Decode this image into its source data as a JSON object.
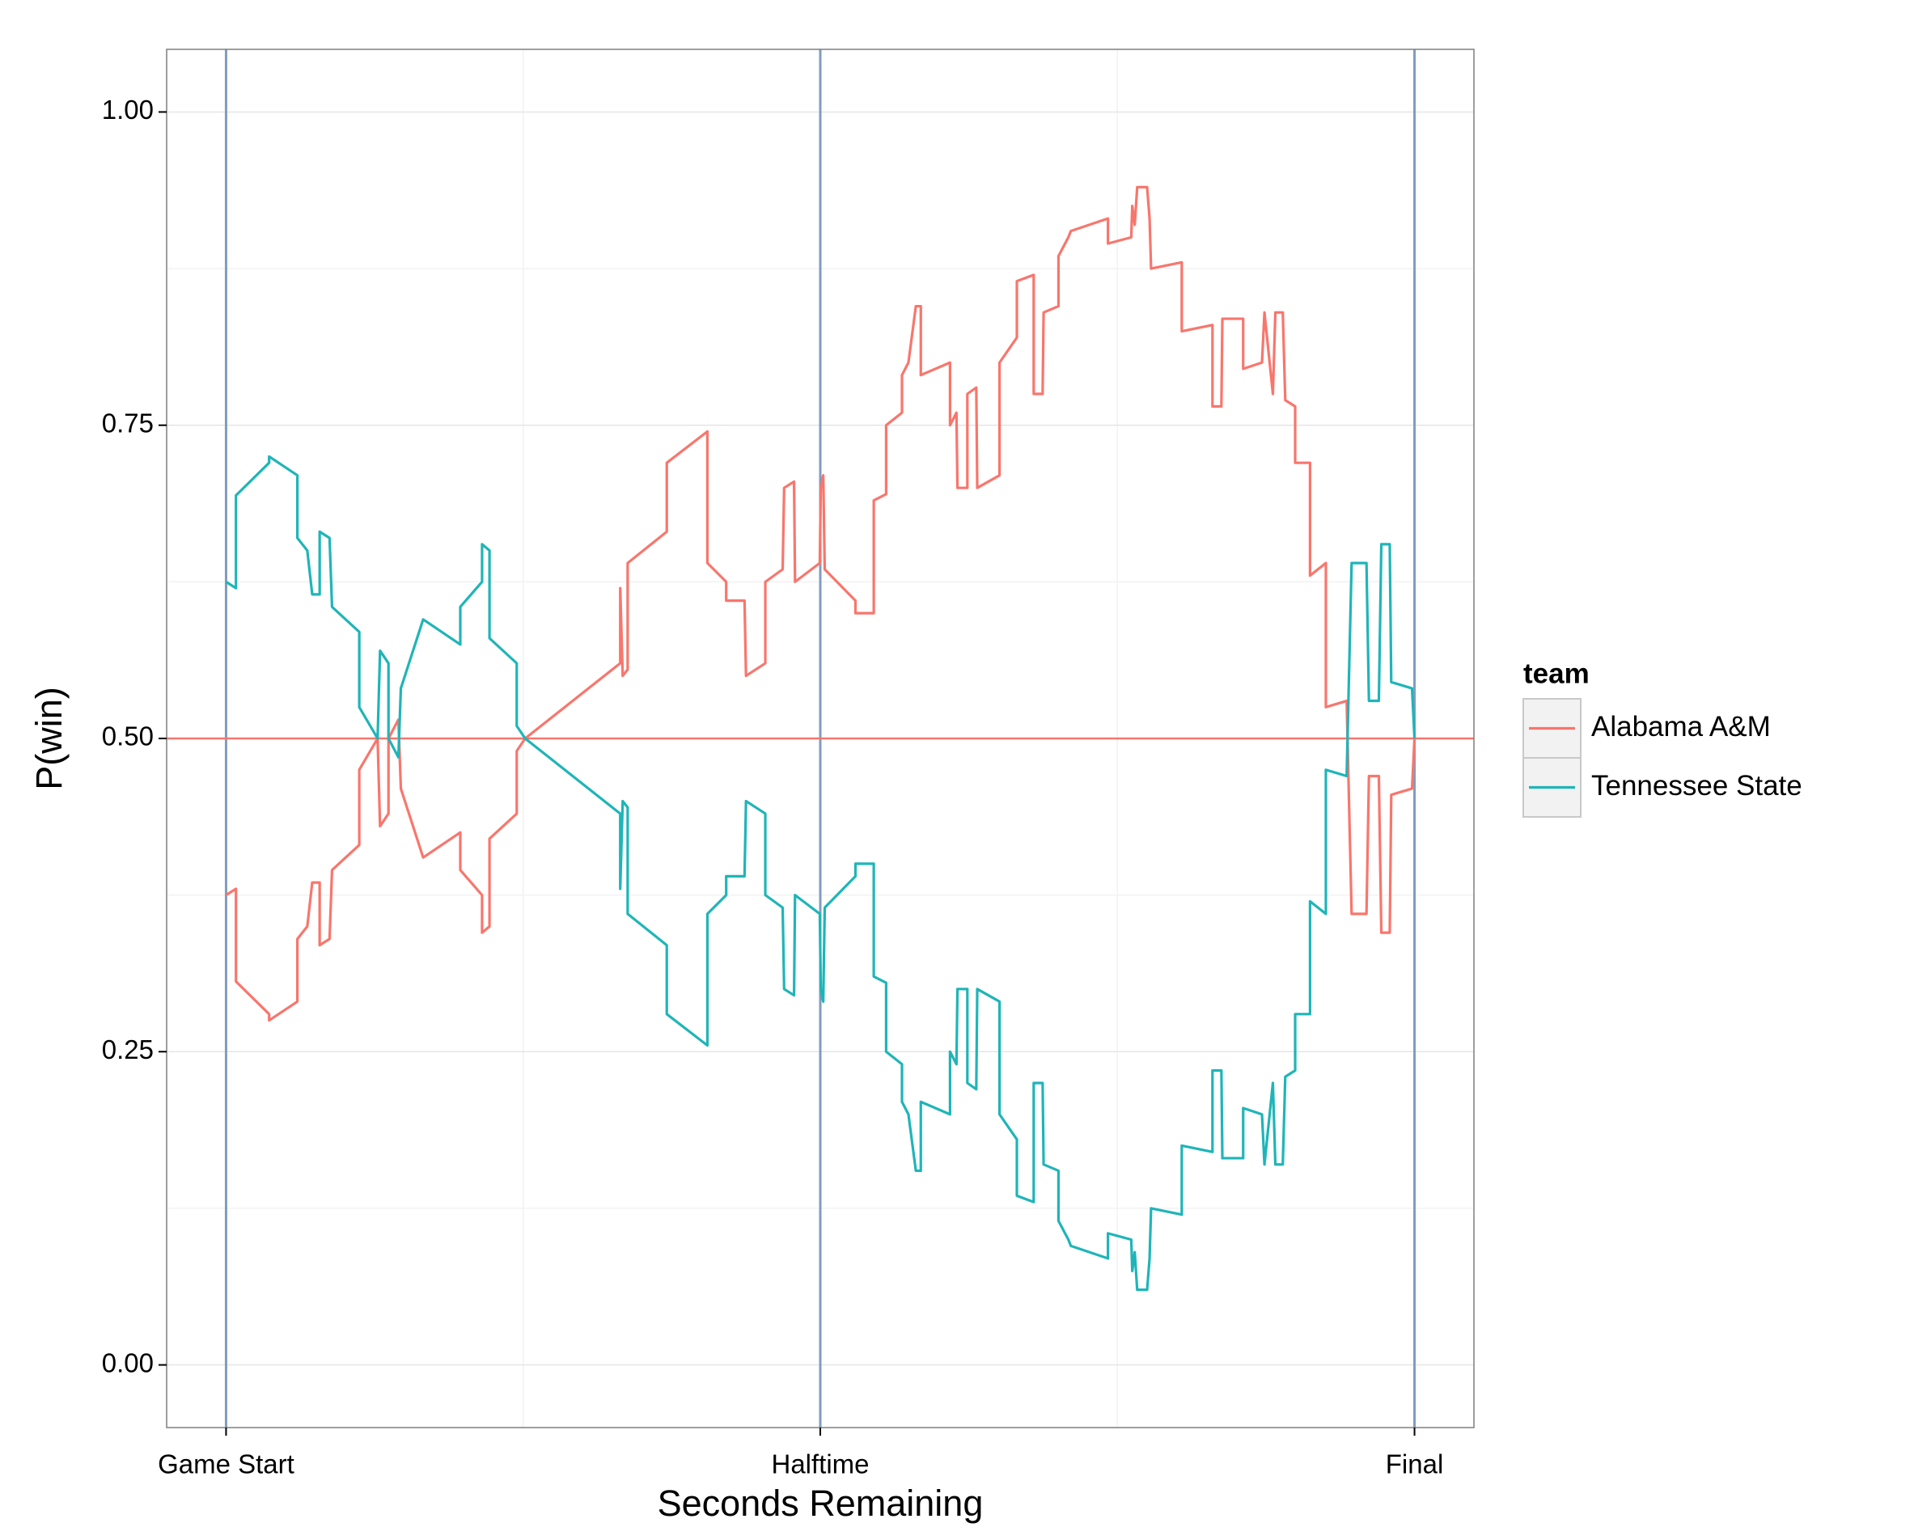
{
  "chart_data": {
    "type": "line",
    "x_label": "Seconds Remaining",
    "y_label": "P(win)",
    "legend_title": "team",
    "legend_position": "right",
    "grid": true,
    "xlim": [
      2520,
      -120
    ],
    "xticks": [
      {
        "value": 2400,
        "label": "Game Start"
      },
      {
        "value": 1200,
        "label": "Halftime"
      },
      {
        "value": 0,
        "label": "Final"
      }
    ],
    "vline_color": "#7f9dc0",
    "ylim": [
      -0.05,
      1.05
    ],
    "yticks": [
      {
        "value": 0,
        "label": "0.00"
      },
      {
        "value": 0.25,
        "label": "0.25"
      },
      {
        "value": 0.5,
        "label": "0.50"
      },
      {
        "value": 0.75,
        "label": "0.75"
      },
      {
        "value": 1,
        "label": "1.00"
      }
    ],
    "hline": 0.5,
    "hline_color": "#f8766d",
    "x": [
      2400,
      2380,
      2380,
      2313,
      2313,
      2256,
      2256,
      2236,
      2226,
      2211,
      2211,
      2191,
      2186,
      2131,
      2131,
      2094,
      2089,
      2072,
      2072,
      2052,
      2047,
      2002,
      1927,
      1927,
      1883,
      1883,
      1868,
      1868,
      1813,
      1813,
      1796,
      1604,
      1604,
      1599,
      1589,
      1589,
      1510,
      1510,
      1428,
      1428,
      1390,
      1390,
      1353,
      1350,
      1311,
      1311,
      1276,
      1273,
      1253,
      1251,
      1201,
      1199,
      1194,
      1191,
      1129,
      1129,
      1092,
      1092,
      1067,
      1067,
      1035,
      1035,
      1022,
      1007,
      997,
      997,
      938,
      938,
      925,
      923,
      903,
      903,
      885,
      883,
      838,
      838,
      803,
      803,
      769,
      769,
      751,
      749,
      719,
      719,
      699,
      694,
      619,
      619,
      572,
      570,
      565,
      560,
      540,
      535,
      532,
      470,
      470,
      408,
      408,
      390,
      388,
      346,
      346,
      308,
      303,
      286,
      281,
      266,
      261,
      241,
      241,
      211,
      211,
      179,
      179,
      137,
      127,
      97,
      92,
      72,
      67,
      50,
      47,
      5,
      0
    ],
    "series": [
      {
        "name": "Alabama A&M",
        "color": "#f8766d",
        "values": [
          0.375,
          0.38,
          0.306,
          0.28,
          0.275,
          0.29,
          0.34,
          0.35,
          0.385,
          0.385,
          0.335,
          0.34,
          0.395,
          0.415,
          0.475,
          0.5,
          0.43,
          0.44,
          0.5,
          0.515,
          0.46,
          0.405,
          0.425,
          0.395,
          0.375,
          0.345,
          0.35,
          0.42,
          0.44,
          0.49,
          0.5,
          0.56,
          0.62,
          0.55,
          0.555,
          0.64,
          0.665,
          0.72,
          0.745,
          0.64,
          0.625,
          0.61,
          0.61,
          0.55,
          0.56,
          0.625,
          0.635,
          0.7,
          0.705,
          0.625,
          0.64,
          0.7,
          0.71,
          0.635,
          0.61,
          0.6,
          0.6,
          0.69,
          0.695,
          0.75,
          0.76,
          0.79,
          0.8,
          0.845,
          0.845,
          0.79,
          0.8,
          0.75,
          0.76,
          0.7,
          0.7,
          0.775,
          0.78,
          0.7,
          0.71,
          0.8,
          0.82,
          0.865,
          0.87,
          0.775,
          0.775,
          0.84,
          0.845,
          0.885,
          0.9,
          0.905,
          0.915,
          0.895,
          0.9,
          0.925,
          0.91,
          0.94,
          0.94,
          0.915,
          0.875,
          0.88,
          0.825,
          0.83,
          0.765,
          0.765,
          0.835,
          0.835,
          0.795,
          0.8,
          0.84,
          0.775,
          0.84,
          0.84,
          0.77,
          0.765,
          0.72,
          0.72,
          0.63,
          0.64,
          0.525,
          0.53,
          0.36,
          0.36,
          0.47,
          0.47,
          0.345,
          0.345,
          0.455,
          0.46,
          0.5
        ]
      },
      {
        "name": "Tennessee State",
        "color": "#1fb5b8",
        "values": [
          0.625,
          0.62,
          0.694,
          0.72,
          0.725,
          0.71,
          0.66,
          0.65,
          0.615,
          0.615,
          0.665,
          0.66,
          0.605,
          0.585,
          0.525,
          0.5,
          0.57,
          0.56,
          0.5,
          0.485,
          0.54,
          0.595,
          0.575,
          0.605,
          0.625,
          0.655,
          0.65,
          0.58,
          0.56,
          0.51,
          0.5,
          0.44,
          0.38,
          0.45,
          0.445,
          0.36,
          0.335,
          0.28,
          0.255,
          0.36,
          0.375,
          0.39,
          0.39,
          0.45,
          0.44,
          0.375,
          0.365,
          0.3,
          0.295,
          0.375,
          0.36,
          0.3,
          0.29,
          0.365,
          0.39,
          0.4,
          0.4,
          0.31,
          0.305,
          0.25,
          0.24,
          0.21,
          0.2,
          0.155,
          0.155,
          0.21,
          0.2,
          0.25,
          0.24,
          0.3,
          0.3,
          0.225,
          0.22,
          0.3,
          0.29,
          0.2,
          0.18,
          0.135,
          0.13,
          0.225,
          0.225,
          0.16,
          0.155,
          0.115,
          0.1,
          0.095,
          0.085,
          0.105,
          0.1,
          0.075,
          0.09,
          0.06,
          0.06,
          0.085,
          0.125,
          0.12,
          0.175,
          0.17,
          0.235,
          0.235,
          0.165,
          0.165,
          0.205,
          0.2,
          0.16,
          0.225,
          0.16,
          0.16,
          0.23,
          0.235,
          0.28,
          0.28,
          0.37,
          0.36,
          0.475,
          0.47,
          0.64,
          0.64,
          0.53,
          0.53,
          0.655,
          0.655,
          0.545,
          0.54,
          0.5
        ]
      }
    ]
  }
}
